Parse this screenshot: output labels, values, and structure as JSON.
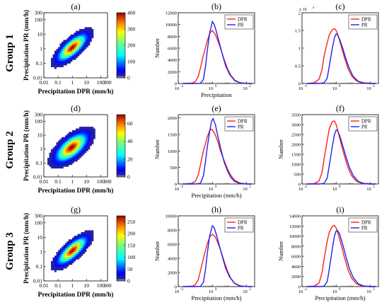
{
  "rows": [
    {
      "label": "Group 1"
    },
    {
      "label": "Group 2"
    },
    {
      "label": "Group 3"
    }
  ],
  "colors": {
    "DPR": "#ff2020",
    "PR": "#2020ee"
  },
  "chart_data": [
    {
      "panel": "(a)",
      "type": "heatmap",
      "xlabel": "Precipitation DPR (mm/h)",
      "ylabel": "Precipitation PR (mm/h)",
      "xscale": "log",
      "yscale": "log",
      "xlim": [
        0.01,
        300
      ],
      "ylim": [
        0.01,
        300
      ],
      "xticks": [
        "0.01",
        "0.1",
        "1",
        "10",
        "100",
        "300"
      ],
      "yticks": [
        "300",
        "100",
        "10",
        "1",
        "0.1",
        "0.01"
      ],
      "colorbar": {
        "range": [
          0,
          400
        ],
        "ticks": [
          "400",
          "300",
          "200",
          "100",
          "0"
        ]
      },
      "density": {
        "center": [
          1.0,
          1.2
        ],
        "spread_decades": [
          0.55,
          0.5
        ],
        "correlation": 0.75,
        "peak": 390
      }
    },
    {
      "panel": "(b)",
      "type": "line",
      "xlabel": "Precipitation",
      "ylabel": "Number",
      "xscale": "log",
      "xlim": [
        0.01,
        300
      ],
      "ylim": [
        0,
        12000
      ],
      "xticks": [
        "10",
        "10",
        "10"
      ],
      "xtick_exponents": [
        "-2",
        "0",
        "2"
      ],
      "yticks": [
        "0",
        "2000",
        "4000",
        "6000",
        "8000",
        "10000",
        "12000"
      ],
      "legend": "top-right",
      "series": [
        {
          "name": "DPR",
          "x": [
            0.02,
            0.06,
            0.1,
            0.15,
            0.2,
            0.3,
            0.5,
            0.7,
            1.0,
            1.5,
            2,
            3,
            5,
            8,
            12,
            20,
            40,
            80,
            200
          ],
          "y": [
            0,
            50,
            300,
            1200,
            2600,
            4800,
            7200,
            8500,
            9000,
            8300,
            7400,
            6000,
            4000,
            2400,
            1400,
            600,
            150,
            30,
            0
          ]
        },
        {
          "name": "PR",
          "x": [
            0.02,
            0.1,
            0.2,
            0.3,
            0.4,
            0.5,
            0.7,
            1.0,
            1.3,
            1.8,
            2.5,
            4,
            6,
            10,
            20,
            40,
            80,
            200
          ],
          "y": [
            0,
            0,
            40,
            700,
            3000,
            5500,
            8600,
            10500,
            10000,
            8600,
            7000,
            4800,
            3000,
            1600,
            500,
            120,
            20,
            0
          ]
        }
      ]
    },
    {
      "panel": "(c)",
      "type": "line",
      "xlabel": "",
      "ylabel": "",
      "xscale": "log",
      "xlim": [
        0.01,
        300
      ],
      "ylim": [
        0,
        2
      ],
      "xticks": [
        "10",
        "10",
        "10"
      ],
      "xtick_exponents": [
        "-2",
        "0",
        "2"
      ],
      "yticks": [
        "0",
        "0.5",
        "1",
        "1.5",
        "2"
      ],
      "y_multiplier": "x 10",
      "y_multiplier_exponent": "4",
      "legend": "top-right",
      "series": [
        {
          "name": "DPR",
          "x": [
            0.02,
            0.05,
            0.1,
            0.15,
            0.2,
            0.3,
            0.4,
            0.6,
            0.8,
            1.0,
            1.3,
            2,
            3,
            5,
            8,
            15,
            30,
            80,
            200
          ],
          "y": [
            0,
            0.02,
            0.12,
            0.4,
            0.8,
            1.15,
            1.38,
            1.52,
            1.55,
            1.5,
            1.36,
            1.05,
            0.75,
            0.42,
            0.22,
            0.08,
            0.02,
            0,
            0
          ]
        },
        {
          "name": "PR",
          "x": [
            0.02,
            0.1,
            0.2,
            0.3,
            0.4,
            0.6,
            0.8,
            1.0,
            1.2,
            1.6,
            2.5,
            4,
            6,
            10,
            20,
            40,
            100,
            200
          ],
          "y": [
            0,
            0,
            0.02,
            0.15,
            0.5,
            1.0,
            1.3,
            1.4,
            1.38,
            1.25,
            0.98,
            0.65,
            0.42,
            0.2,
            0.06,
            0.02,
            0,
            0
          ]
        }
      ]
    },
    {
      "panel": "(d)",
      "type": "heatmap",
      "xlabel": "Precipitation DPR (mm/h)",
      "ylabel": "Precipitation PR (mm/h)",
      "xscale": "log",
      "yscale": "log",
      "xlim": [
        0.01,
        300
      ],
      "ylim": [
        0.01,
        300
      ],
      "xticks": [
        "0.01",
        "0.1",
        "1",
        "10",
        "100",
        "300"
      ],
      "yticks": [
        "300",
        "100",
        "10",
        "1",
        "0.1",
        "0.01"
      ],
      "colorbar": {
        "range": [
          0,
          70
        ],
        "ticks": [
          "60",
          "40",
          "20",
          "0"
        ]
      },
      "density": {
        "center": [
          0.9,
          1.3
        ],
        "spread_decades": [
          0.6,
          0.55
        ],
        "correlation": 0.65,
        "peak": 65
      }
    },
    {
      "panel": "(e)",
      "type": "line",
      "xlabel": "Precipitation (mm/h)",
      "ylabel": "Number",
      "xscale": "log",
      "xlim": [
        0.01,
        300
      ],
      "ylim": [
        0,
        2100
      ],
      "xticks": [
        "10",
        "10",
        "10"
      ],
      "xtick_exponents": [
        "-2",
        "0",
        "2"
      ],
      "yticks": [
        "0",
        "500",
        "1000",
        "1500",
        "2000"
      ],
      "legend": "top-right",
      "series": [
        {
          "name": "DPR",
          "x": [
            0.02,
            0.06,
            0.1,
            0.15,
            0.2,
            0.3,
            0.5,
            0.7,
            0.9,
            1.2,
            1.6,
            2.2,
            3,
            5,
            8,
            12,
            20,
            40,
            100,
            200
          ],
          "y": [
            0,
            20,
            80,
            280,
            580,
            1000,
            1420,
            1620,
            1660,
            1580,
            1450,
            1250,
            1000,
            700,
            440,
            260,
            120,
            30,
            0,
            0
          ]
        },
        {
          "name": "PR",
          "x": [
            0.02,
            0.1,
            0.2,
            0.3,
            0.4,
            0.5,
            0.7,
            0.9,
            1.1,
            1.5,
            2,
            3,
            5,
            8,
            12,
            20,
            40,
            100,
            200
          ],
          "y": [
            0,
            0,
            20,
            250,
            700,
            1100,
            1600,
            1900,
            1980,
            1800,
            1500,
            1100,
            650,
            380,
            200,
            80,
            15,
            0,
            0
          ]
        }
      ]
    },
    {
      "panel": "(f)",
      "type": "line",
      "xlabel": "",
      "ylabel": "Number",
      "xscale": "log",
      "xlim": [
        0.01,
        300
      ],
      "ylim": [
        0,
        3500
      ],
      "xticks": [
        "10",
        "10",
        "10"
      ],
      "xtick_exponents": [
        "-2",
        "0",
        "2"
      ],
      "yticks": [
        "0",
        "500",
        "1000",
        "1500",
        "2000",
        "2500",
        "3000",
        "3500"
      ],
      "legend": "top-right",
      "series": [
        {
          "name": "DPR",
          "x": [
            0.02,
            0.05,
            0.1,
            0.15,
            0.2,
            0.3,
            0.4,
            0.6,
            0.8,
            1.0,
            1.3,
            2,
            3,
            5,
            8,
            15,
            30,
            80,
            200
          ],
          "y": [
            0,
            20,
            150,
            600,
            1300,
            2200,
            2800,
            3150,
            3180,
            3000,
            2650,
            2000,
            1450,
            820,
            420,
            150,
            40,
            0,
            0
          ]
        },
        {
          "name": "PR",
          "x": [
            0.02,
            0.1,
            0.2,
            0.3,
            0.4,
            0.6,
            0.8,
            1.0,
            1.2,
            1.6,
            2.5,
            4,
            6,
            10,
            20,
            40,
            100,
            200
          ],
          "y": [
            0,
            0,
            30,
            300,
            950,
            1900,
            2500,
            2720,
            2700,
            2450,
            1900,
            1300,
            850,
            420,
            130,
            30,
            0,
            0
          ]
        }
      ]
    },
    {
      "panel": "(g)",
      "type": "heatmap",
      "xlabel": "Precipitation DPR (mm/h)",
      "ylabel": "Precipitation PR (mm/h)",
      "xscale": "log",
      "yscale": "log",
      "xlim": [
        0.01,
        300
      ],
      "ylim": [
        0.01,
        300
      ],
      "xticks": [
        "0.01",
        "0.1",
        "1",
        "10",
        "100",
        "300"
      ],
      "yticks": [
        "300",
        "100",
        "10",
        "1",
        "0.1",
        "0.01"
      ],
      "colorbar": {
        "range": [
          0,
          275
        ],
        "ticks": [
          "250",
          "200",
          "150",
          "100",
          "50",
          "0"
        ]
      },
      "density": {
        "center": [
          1.0,
          1.2
        ],
        "spread_decades": [
          0.55,
          0.5
        ],
        "correlation": 0.78,
        "peak": 265
      }
    },
    {
      "panel": "(h)",
      "type": "line",
      "xlabel": "Precipitation (mm/h)",
      "ylabel": "Number",
      "xscale": "log",
      "xlim": [
        0.01,
        300
      ],
      "ylim": [
        0,
        10000
      ],
      "xticks": [
        "10",
        "10",
        "10"
      ],
      "xtick_exponents": [
        "-2",
        "0",
        "2"
      ],
      "yticks": [
        "0",
        "2000",
        "4000",
        "6000",
        "8000",
        "10000"
      ],
      "legend": "top-right",
      "series": [
        {
          "name": "DPR",
          "x": [
            0.02,
            0.06,
            0.1,
            0.15,
            0.2,
            0.3,
            0.5,
            0.7,
            1.0,
            1.5,
            2,
            3,
            5,
            8,
            12,
            20,
            40,
            80,
            200
          ],
          "y": [
            0,
            40,
            250,
            1000,
            2200,
            4000,
            6000,
            7000,
            7400,
            7000,
            6300,
            5200,
            3500,
            2100,
            1200,
            500,
            120,
            20,
            0
          ]
        },
        {
          "name": "PR",
          "x": [
            0.02,
            0.1,
            0.2,
            0.3,
            0.4,
            0.5,
            0.7,
            1.0,
            1.3,
            1.8,
            2.5,
            4,
            6,
            10,
            20,
            40,
            80,
            200
          ],
          "y": [
            0,
            0,
            40,
            600,
            2500,
            4600,
            7200,
            8600,
            8300,
            7200,
            5900,
            4100,
            2600,
            1400,
            450,
            100,
            15,
            0
          ]
        }
      ]
    },
    {
      "panel": "(i)",
      "type": "line",
      "xlabel": "Precipitation (mm/h)",
      "ylabel": "Number",
      "xscale": "log",
      "xlim": [
        0.01,
        300
      ],
      "ylim": [
        0,
        14000
      ],
      "xticks": [
        "10",
        "10",
        "10"
      ],
      "xtick_exponents": [
        "-2",
        "0",
        "2"
      ],
      "yticks": [
        "0",
        "2000",
        "4000",
        "6000",
        "8000",
        "10000",
        "12000",
        "14000"
      ],
      "legend": "top-right",
      "series": [
        {
          "name": "DPR",
          "x": [
            0.02,
            0.05,
            0.1,
            0.15,
            0.2,
            0.3,
            0.4,
            0.6,
            0.8,
            1.0,
            1.3,
            2,
            3,
            5,
            8,
            15,
            30,
            80,
            200
          ],
          "y": [
            0,
            100,
            700,
            2800,
            5600,
            9000,
            10800,
            11900,
            12100,
            11600,
            10500,
            8200,
            5900,
            3300,
            1700,
            600,
            150,
            0,
            0
          ]
        },
        {
          "name": "PR",
          "x": [
            0.02,
            0.1,
            0.2,
            0.3,
            0.4,
            0.6,
            0.8,
            1.0,
            1.2,
            1.6,
            2.5,
            4,
            6,
            10,
            20,
            40,
            100,
            200
          ],
          "y": [
            0,
            0,
            100,
            1000,
            3500,
            7500,
            10000,
            11000,
            11100,
            10400,
            8200,
            5600,
            3600,
            1800,
            550,
            130,
            0,
            0
          ]
        }
      ]
    }
  ]
}
